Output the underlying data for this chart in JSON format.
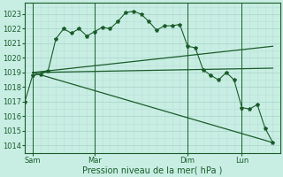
{
  "bg_color": "#c8eee4",
  "grid_major_color": "#a8d4c8",
  "grid_minor_color": "#b8ddd4",
  "line_color": "#1a5c2a",
  "xlabel": "Pression niveau de la mer( hPa )",
  "yticks": [
    1014,
    1015,
    1016,
    1017,
    1018,
    1019,
    1020,
    1021,
    1022,
    1023
  ],
  "ylim": [
    1013.5,
    1023.8
  ],
  "xtick_labels": [
    "Sam",
    "Mar",
    "Dim",
    "Lun"
  ],
  "xtick_positions": [
    0,
    8,
    20,
    27
  ],
  "vline_positions": [
    0,
    8,
    20,
    27
  ],
  "xlim": [
    -1,
    32
  ],
  "series1_x": [
    -1,
    0,
    1,
    2,
    3,
    4,
    5,
    6,
    7,
    8,
    9,
    10,
    11,
    12,
    13,
    14,
    15,
    16,
    17,
    18,
    19,
    20,
    21,
    22,
    23,
    24,
    25,
    26,
    27,
    28,
    29,
    30,
    31
  ],
  "series1_y": [
    1017.0,
    1018.8,
    1018.9,
    1019.1,
    1021.3,
    1022.0,
    1021.7,
    1022.0,
    1021.5,
    1021.8,
    1022.1,
    1022.0,
    1022.5,
    1023.1,
    1023.2,
    1023.0,
    1022.5,
    1021.9,
    1022.2,
    1022.2,
    1022.3,
    1020.8,
    1020.7,
    1019.2,
    1018.8,
    1018.5,
    1019.0,
    1018.5,
    1016.6,
    1016.5,
    1016.8,
    1015.2,
    1014.2
  ],
  "straight_lines": [
    {
      "x": [
        0,
        31
      ],
      "y": [
        1019.0,
        1020.8
      ]
    },
    {
      "x": [
        0,
        31
      ],
      "y": [
        1019.0,
        1019.3
      ]
    },
    {
      "x": [
        0,
        31
      ],
      "y": [
        1019.0,
        1014.2
      ]
    }
  ]
}
